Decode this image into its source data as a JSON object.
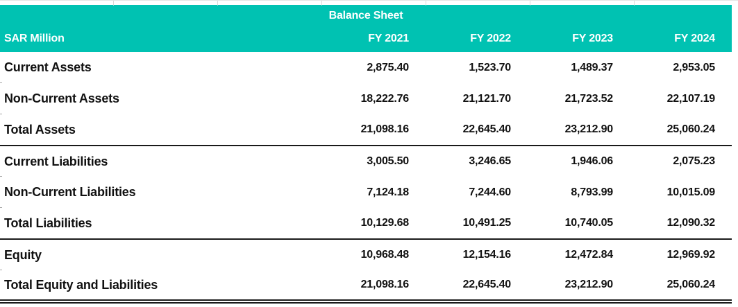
{
  "colors": {
    "header_bg": "#00C2B2",
    "header_text": "#ffffff",
    "body_text": "#111111",
    "separator": "#1a1a1a",
    "gridline": "#d9d9d9"
  },
  "table": {
    "title": "Balance Sheet",
    "unit_label": "SAR Million",
    "columns": [
      "FY 2021",
      "FY 2022",
      "FY 2023",
      "FY 2024"
    ],
    "rows": [
      {
        "label": "Current Assets",
        "values": [
          "2,875.40",
          "1,523.70",
          "1,489.37",
          "2,953.05"
        ]
      },
      {
        "label": "Non-Current Assets",
        "values": [
          "18,222.76",
          "21,121.70",
          "21,723.52",
          "22,107.19"
        ]
      },
      {
        "label": "Total Assets",
        "values": [
          "21,098.16",
          "22,645.40",
          "23,212.90",
          "25,060.24"
        ]
      },
      {
        "label": "Current Liabilities",
        "values": [
          "3,005.50",
          "3,246.65",
          "1,946.06",
          "2,075.23"
        ]
      },
      {
        "label": "Non-Current Liabilities",
        "values": [
          "7,124.18",
          "7,244.60",
          "8,793.99",
          "10,015.09"
        ]
      },
      {
        "label": "Total Liabilities",
        "values": [
          "10,129.68",
          "10,491.25",
          "10,740.05",
          "12,090.32"
        ]
      },
      {
        "label": "Equity",
        "values": [
          "10,968.48",
          "12,154.16",
          "12,472.84",
          "12,969.92"
        ]
      },
      {
        "label": "Total Equity and Liabilities",
        "values": [
          "21,098.16",
          "22,645.40",
          "23,212.90",
          "25,060.24"
        ]
      }
    ]
  }
}
